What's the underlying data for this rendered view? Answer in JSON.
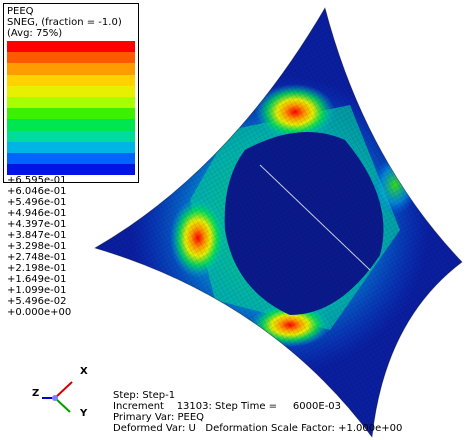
{
  "legend": {
    "title": [
      "PEEQ",
      "SNEG, (fraction = -1.0)",
      "(Avg: 75%)"
    ],
    "labels": [
      "+6.595e-01",
      "+6.046e-01",
      "+5.496e-01",
      "+4.946e-01",
      "+4.397e-01",
      "+3.847e-01",
      "+3.298e-01",
      "+2.748e-01",
      "+2.198e-01",
      "+1.649e-01",
      "+1.099e-01",
      "+5.496e-02",
      "+0.000e+00"
    ],
    "colors": [
      "#ff0000",
      "#ff5a00",
      "#ff9c00",
      "#ffd200",
      "#e6f000",
      "#a8ff00",
      "#3cf000",
      "#00e650",
      "#00dca0",
      "#00b4e6",
      "#0064ff",
      "#0014e6"
    ]
  },
  "status": [
    "Step: Step-1",
    "Increment    13103: Step Time =     6000E-03",
    "Primary Var: PEEQ",
    "Deformed Var: U   Deformation Scale Factor: +1.000e+00"
  ],
  "triad": {
    "x": "X",
    "y": "Y",
    "z": "Z"
  }
}
